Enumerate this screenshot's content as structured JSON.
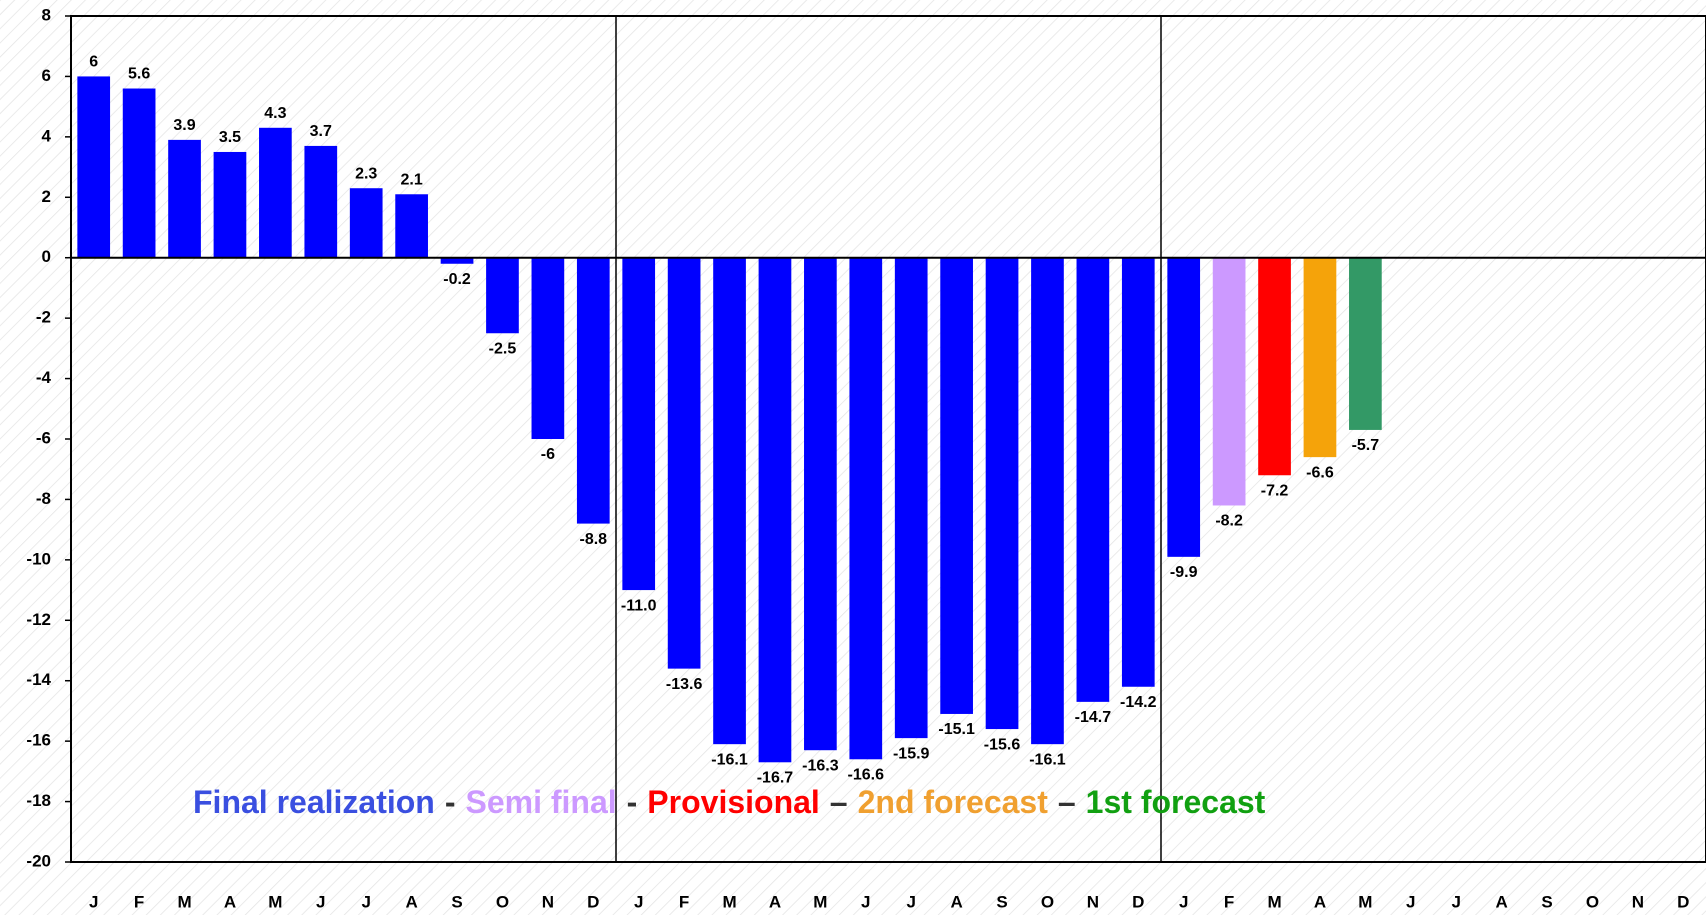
{
  "chart_data": {
    "type": "bar",
    "categories": [
      "J",
      "F",
      "M",
      "A",
      "M",
      "J",
      "J",
      "A",
      "S",
      "O",
      "N",
      "D",
      "J",
      "F",
      "M",
      "A",
      "M",
      "J",
      "J",
      "A",
      "S",
      "O",
      "N",
      "D",
      "J",
      "F",
      "M",
      "A",
      "M",
      "J",
      "J",
      "A",
      "S",
      "O",
      "N",
      "D"
    ],
    "values": [
      6,
      5.6,
      3.9,
      3.5,
      4.3,
      3.7,
      2.3,
      2.1,
      -0.2,
      -2.5,
      -6,
      -8.8,
      -11.0,
      -13.6,
      -16.1,
      -16.7,
      -16.3,
      -16.6,
      -15.9,
      -15.1,
      -15.6,
      -16.1,
      -14.7,
      -14.2,
      -9.9,
      -8.2,
      -7.2,
      -6.6,
      -5.7,
      null,
      null,
      null,
      null,
      null,
      null,
      null
    ],
    "value_labels": [
      "6",
      "5.6",
      "3.9",
      "3.5",
      "4.3",
      "3.7",
      "2.3",
      "2.1",
      "-0.2",
      "-2.5",
      "-6",
      "-8.8",
      "-11.0",
      "-13.6",
      "-16.1",
      "-16.7",
      "-16.3",
      "-16.6",
      "-15.9",
      "-15.1",
      "-15.6",
      "-16.1",
      "-14.7",
      "-14.2",
      "-9.9",
      "-8.2",
      "-7.2",
      "-6.6",
      "-5.7",
      null,
      null,
      null,
      null,
      null,
      null,
      null
    ],
    "colors": [
      "#0000ff",
      "#0000ff",
      "#0000ff",
      "#0000ff",
      "#0000ff",
      "#0000ff",
      "#0000ff",
      "#0000ff",
      "#0000ff",
      "#0000ff",
      "#0000ff",
      "#0000ff",
      "#0000ff",
      "#0000ff",
      "#0000ff",
      "#0000ff",
      "#0000ff",
      "#0000ff",
      "#0000ff",
      "#0000ff",
      "#0000ff",
      "#0000ff",
      "#0000ff",
      "#0000ff",
      "#0000ff",
      "#cc99ff",
      "#ff0000",
      "#f5a30a",
      "#339966",
      null,
      null,
      null,
      null,
      null,
      null,
      null
    ],
    "ylim": [
      -20,
      8
    ],
    "yticks": [
      -20,
      -18,
      -16,
      -14,
      -12,
      -10,
      -8,
      -6,
      -4,
      -2,
      0,
      2,
      4,
      6,
      8
    ],
    "legend": [
      {
        "name": "Final realization",
        "color": "#3a4fe0"
      },
      {
        "name": "Semi final",
        "color": "#cc99ff"
      },
      {
        "name": "Provisional",
        "color": "#ff0000"
      },
      {
        "name": "2nd forecast",
        "color": "#f0a030"
      },
      {
        "name": "1st forecast",
        "color": "#11a011"
      }
    ],
    "legend_separators": [
      "-",
      "-",
      "–",
      "–"
    ]
  }
}
